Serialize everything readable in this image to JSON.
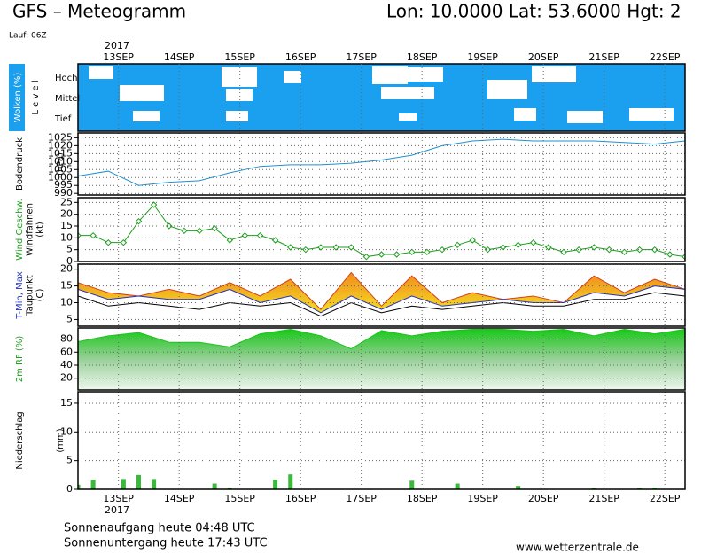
{
  "header": {
    "title": "GFS – Meteogramm",
    "location": "Lon: 10.0000 Lat: 53.6000 Hgt: 2",
    "run": "Lauf: 06Z",
    "year_top": "2017",
    "year_bottom": "2017",
    "sunrise": "Sonnenaufgang heute 04:48 UTC",
    "sunset": "Sonnenuntergang heute 17:43 UTC",
    "source": "www.wetterzentrale.de"
  },
  "clouds": {
    "label": "Wolken (%)",
    "level": "L e v e l",
    "levels": [
      "Hoch",
      "Mittel",
      "Tief"
    ]
  },
  "x_axis": {
    "xlim": [
      0,
      240
    ],
    "xticks": [
      {
        "value": 16,
        "label": "13SEP"
      },
      {
        "value": 40,
        "label": "14SEP"
      },
      {
        "value": 64,
        "label": "15SEP"
      },
      {
        "value": 88,
        "label": "16SEP"
      },
      {
        "value": 112,
        "label": "17SEP"
      },
      {
        "value": 136,
        "label": "18SEP"
      },
      {
        "value": 160,
        "label": "19SEP"
      },
      {
        "value": 184,
        "label": "20SEP"
      },
      {
        "value": 208,
        "label": "21SEP"
      },
      {
        "value": 232,
        "label": "22SEP"
      }
    ]
  },
  "chart_data": [
    {
      "type": "line",
      "ylabel": [
        {
          "text": "Bodendruck",
          "color": "#000000"
        },
        {
          "text": "(hPa)",
          "color": "#000000"
        }
      ],
      "x": [
        0,
        12,
        24,
        36,
        48,
        60,
        72,
        84,
        96,
        108,
        120,
        132,
        144,
        156,
        168,
        180,
        192,
        204,
        216,
        228,
        240
      ],
      "series": [
        {
          "color": "#1e90d0",
          "values": [
            1001,
            1004,
            995,
            997,
            998,
            1003,
            1007,
            1008,
            1008,
            1009,
            1011,
            1014,
            1020,
            1023,
            1024,
            1023,
            1023,
            1023,
            1022,
            1021,
            1023
          ]
        }
      ],
      "ylim": [
        989,
        1028
      ],
      "yticks": [
        990,
        995,
        1000,
        1005,
        1010,
        1015,
        1020,
        1025
      ],
      "grid": true
    },
    {
      "type": "line",
      "markers": true,
      "ylabel": [
        {
          "text": "Wind Geschw.",
          "color": "#1a9e1a"
        },
        {
          "text": "Windfahnen",
          "color": "#000000"
        },
        {
          "text": "(kt)",
          "color": "#000000"
        }
      ],
      "x": [
        0,
        6,
        12,
        18,
        24,
        30,
        36,
        42,
        48,
        54,
        60,
        66,
        72,
        78,
        84,
        90,
        96,
        102,
        108,
        114,
        120,
        126,
        132,
        138,
        144,
        150,
        156,
        162,
        168,
        174,
        180,
        186,
        192,
        198,
        204,
        210,
        216,
        222,
        228,
        234,
        240
      ],
      "series": [
        {
          "color": "#1a9e1a",
          "values": [
            11,
            11,
            8,
            8,
            17,
            24,
            15,
            13,
            13,
            14,
            9,
            11,
            11,
            9,
            6,
            5,
            6,
            6,
            6,
            2,
            3,
            3,
            4,
            4,
            5,
            7,
            9,
            5,
            6,
            7,
            8,
            6,
            4,
            5,
            6,
            5,
            4,
            5,
            5,
            3,
            2
          ]
        }
      ],
      "ylim": [
        0,
        27
      ],
      "yticks": [
        0,
        5,
        10,
        15,
        20,
        25
      ],
      "grid": true
    },
    {
      "type": "line",
      "fill_between": [
        1,
        0
      ],
      "ylabel": [
        {
          "text": "T-Min, Max",
          "color": "#2030c0"
        },
        {
          "text": "Taupunkt",
          "color": "#000000"
        },
        {
          "text": "(C)",
          "color": "#000000"
        }
      ],
      "x": [
        0,
        12,
        24,
        36,
        48,
        60,
        72,
        84,
        96,
        108,
        120,
        132,
        144,
        156,
        168,
        180,
        192,
        204,
        216,
        228,
        240
      ],
      "series": [
        {
          "color": "#d04020",
          "values": [
            16,
            13,
            12,
            14,
            12,
            16,
            12,
            17,
            8,
            19,
            9,
            18,
            10,
            13,
            11,
            12,
            10,
            18,
            13,
            17,
            14
          ]
        },
        {
          "color": "#2030c0",
          "values": [
            14,
            11,
            12,
            11,
            11,
            14,
            10,
            12,
            7,
            12,
            8,
            12,
            9,
            10,
            11,
            10,
            10,
            13,
            12,
            15,
            14
          ]
        },
        {
          "color": "#000000",
          "values": [
            12,
            9,
            10,
            9,
            8,
            10,
            9,
            10,
            6,
            10,
            7,
            9,
            8,
            9,
            10,
            9,
            9,
            11,
            11,
            13,
            12
          ]
        }
      ],
      "ylim": [
        3,
        21.5
      ],
      "yticks": [
        5,
        10,
        15,
        20
      ],
      "grid": true
    },
    {
      "type": "area",
      "ylabel": [
        {
          "text": "2m RF (%)",
          "color": "#1a9e1a"
        }
      ],
      "x": [
        0,
        12,
        24,
        36,
        48,
        60,
        72,
        84,
        96,
        108,
        120,
        132,
        144,
        156,
        168,
        180,
        192,
        204,
        216,
        228,
        240
      ],
      "series": [
        {
          "color": "#22c022",
          "values": [
            76,
            85,
            90,
            75,
            75,
            68,
            88,
            95,
            85,
            65,
            93,
            85,
            92,
            95,
            95,
            92,
            95,
            85,
            95,
            88,
            95
          ]
        }
      ],
      "ylim": [
        2,
        97
      ],
      "yticks": [
        20,
        40,
        60,
        80
      ],
      "grid": true
    },
    {
      "type": "bar",
      "ylabel": [
        {
          "text": "Niederschlag",
          "color": "#000000"
        },
        {
          "text": "(mm)",
          "color": "#000000"
        }
      ],
      "x": [
        0,
        6,
        12,
        18,
        24,
        30,
        36,
        42,
        48,
        54,
        60,
        66,
        72,
        78,
        84,
        90,
        96,
        102,
        108,
        114,
        120,
        126,
        132,
        138,
        144,
        150,
        156,
        162,
        168,
        174,
        180,
        186,
        192,
        198,
        204,
        210,
        216,
        222,
        228,
        234,
        240
      ],
      "series": [
        {
          "color": "#3cb83c",
          "values": [
            0.8,
            1.7,
            0,
            1.8,
            2.5,
            1.8,
            0,
            0,
            0,
            1.0,
            0.2,
            0,
            0,
            1.7,
            2.6,
            0,
            0,
            0,
            0,
            0,
            0,
            0,
            1.5,
            0,
            0,
            1.0,
            0,
            0,
            0,
            0.6,
            0,
            0,
            0,
            0,
            0.2,
            0,
            0,
            0.2,
            0.3,
            0,
            0
          ]
        }
      ],
      "ylim": [
        0,
        17
      ],
      "yticks": [
        0,
        5,
        10,
        15
      ],
      "grid": true
    }
  ]
}
